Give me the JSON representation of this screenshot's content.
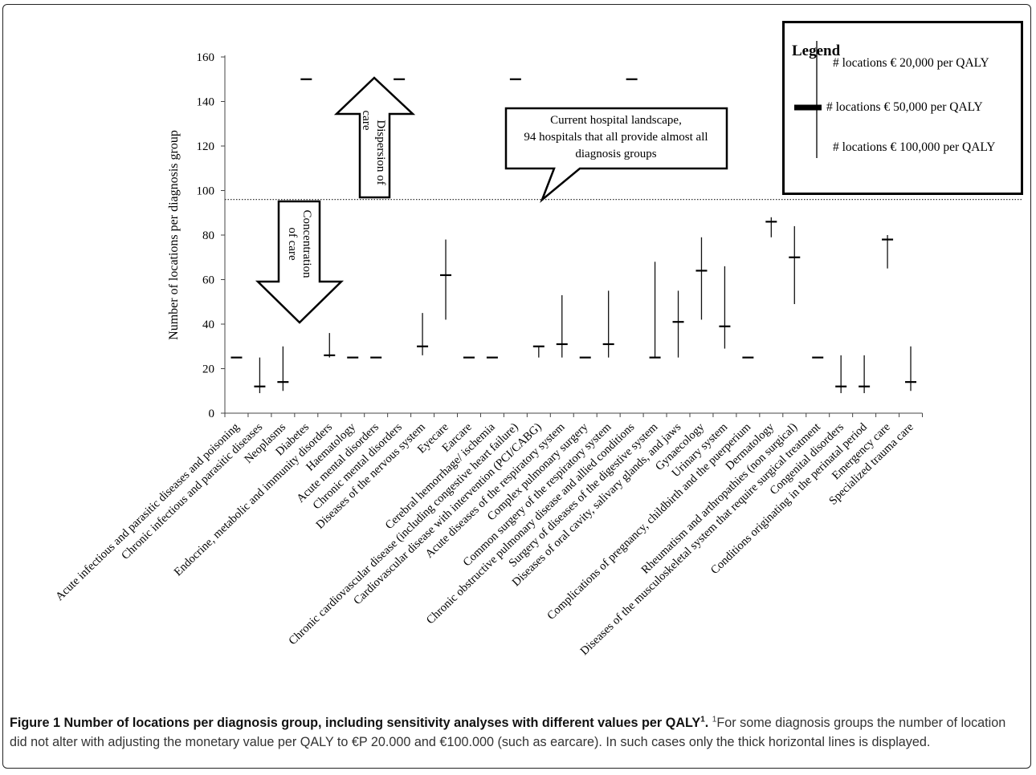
{
  "chart_data": {
    "type": "scatter",
    "ylabel": "Number of locations per diagnosis group",
    "ylim": [
      0,
      160
    ],
    "yticks": [
      0,
      20,
      40,
      60,
      80,
      100,
      120,
      140,
      160
    ],
    "reference_line": 96,
    "categories": [
      "Acute infectious and parasitic diseases and poisoning",
      "Chronic infectious and parasitic diseases",
      "Neoplasms",
      "Diabetes",
      "Endocrine, metabolic and immunity disorders",
      "Haematology",
      "Acute mental disorders",
      "Chronic mental disorders",
      "Diseases of the nervous system",
      "Eyecare",
      "Earcare",
      "Cerebral hemorrhage/ ischemia",
      "Chronic cardiovascular disease (including congestive heart failure)",
      "Cardiovascular disease with intervention (PCI/CABG)",
      "Acute diseases of the respiratory system",
      "Complex pulmonary surgery",
      "Common surgery of the respiratory system",
      "Chronic obstructive pulmonary disease and allied conditions",
      "Surgery of diseases of the digestive system",
      "Diseases of oral cavity, salivary glands, and jaws",
      "Gynaecology",
      "Urinary system",
      "Complications of pregnancy, childbirth and the puerperium",
      "Dermatology",
      "Rheumatism and arthropathies (non surgical)",
      "Diseases of the musculoskeletal system that require surgical treatment",
      "Congenital disorders",
      "Conditions originating in the perinatal period",
      "Emergency care",
      "Specialized trauma care"
    ],
    "series": [
      {
        "name": "# locations € 50,000 per QALY",
        "values": [
          25,
          12,
          14,
          150,
          26,
          25,
          25,
          150,
          30,
          62,
          25,
          25,
          150,
          30,
          31,
          25,
          31,
          150,
          25,
          41,
          64,
          39,
          25,
          86,
          70,
          25,
          12,
          12,
          78,
          14
        ]
      },
      {
        "name": "# locations € 20,000 per QALY",
        "values": [
          25,
          9,
          10,
          150,
          25,
          25,
          25,
          150,
          26,
          42,
          25,
          25,
          150,
          25,
          25,
          25,
          25,
          150,
          25,
          25,
          42,
          29,
          25,
          79,
          49,
          25,
          9,
          9,
          65,
          10
        ]
      },
      {
        "name": "# locations € 100,000 per QALY",
        "values": [
          25,
          25,
          30,
          150,
          36,
          25,
          25,
          150,
          45,
          78,
          25,
          25,
          150,
          30,
          53,
          25,
          55,
          150,
          68,
          55,
          79,
          66,
          25,
          88,
          84,
          25,
          26,
          26,
          80,
          30
        ]
      }
    ],
    "annotations": {
      "callout": "Current hospital landscape, 94 hospitals that all provide almost all diagnosis groups",
      "arrow_up": [
        "Dispersion of",
        "care"
      ],
      "arrow_down": [
        "Concentration",
        "of care"
      ]
    },
    "legend": {
      "title": "Legend",
      "placement": "top-right",
      "items": [
        "# locations € 20,000 per QALY",
        "# locations € 50,000 per QALY",
        "# locations € 100,000 per QALY"
      ]
    },
    "grid": false
  },
  "caption": {
    "bold": "Figure 1 Number of locations per diagnosis group, including sensitivity analyses with different values per QALY",
    "bold_sup": "1",
    "sup": "1",
    "text": "For some diagnosis groups the number of location did not alter with adjusting the monetary value per QALY to €P 20.000 and €100.000 (such as earcare). In such cases only the thick horizontal lines is displayed."
  }
}
